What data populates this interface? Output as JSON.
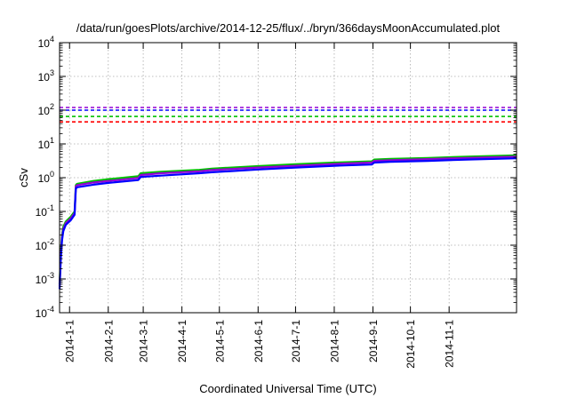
{
  "chart_data": {
    "type": "line",
    "title": "/data/run/goesPlots/archive/2014-12-25/flux/../bryn/366daysMoonAccumulated.plot",
    "xlabel": "Coordinated Universal Time (UTC)",
    "ylabel": "cSv",
    "yscale": "log",
    "ylim": [
      0.0001,
      10000
    ],
    "xlim": [
      "2013-12-24",
      "2014-12-25"
    ],
    "grid": true,
    "x_ticks": [
      "2014-1-1",
      "2014-2-1",
      "2014-3-1",
      "2014-4-1",
      "2014-5-1",
      "2014-6-1",
      "2014-7-1",
      "2014-8-1",
      "2014-9-1",
      "2014-10-1",
      "2014-11-1"
    ],
    "y_ticks": [
      {
        "value": 0.0001,
        "base": "10",
        "exp": "-4"
      },
      {
        "value": 0.001,
        "base": "10",
        "exp": "-3"
      },
      {
        "value": 0.01,
        "base": "10",
        "exp": "-2"
      },
      {
        "value": 0.1,
        "base": "10",
        "exp": "-1"
      },
      {
        "value": 1,
        "base": "10",
        "exp": "0"
      },
      {
        "value": 10,
        "base": "10",
        "exp": "1"
      },
      {
        "value": 100,
        "base": "10",
        "exp": "2"
      },
      {
        "value": 1000,
        "base": "10",
        "exp": "3"
      },
      {
        "value": 10000,
        "base": "10",
        "exp": "4"
      }
    ],
    "thresholds": [
      {
        "value": 120,
        "color": "#9400d3",
        "style": "dashed"
      },
      {
        "value": 100,
        "color": "#0000ff",
        "style": "dashed"
      },
      {
        "value": 65,
        "color": "#00c000",
        "style": "dashed"
      },
      {
        "value": 45,
        "color": "#ff0000",
        "style": "dashed"
      }
    ],
    "series": [
      {
        "color": "#00c000",
        "points": [
          [
            "2013-12-24",
            0.0007
          ],
          [
            "2013-12-25",
            0.006
          ],
          [
            "2013-12-26",
            0.02
          ],
          [
            "2013-12-27",
            0.035
          ],
          [
            "2013-12-29",
            0.05
          ],
          [
            "2014-1-2",
            0.07
          ],
          [
            "2014-1-5",
            0.1
          ],
          [
            "2014-1-6",
            0.6
          ],
          [
            "2014-1-7",
            0.66
          ],
          [
            "2014-1-20",
            0.8
          ],
          [
            "2014-2-1",
            0.9
          ],
          [
            "2014-2-25",
            1.1
          ],
          [
            "2014-2-27",
            1.35
          ],
          [
            "2014-3-15",
            1.5
          ],
          [
            "2014-4-15",
            1.7
          ],
          [
            "2014-4-25",
            1.85
          ],
          [
            "2014-6-1",
            2.2
          ],
          [
            "2014-7-1",
            2.5
          ],
          [
            "2014-8-1",
            2.8
          ],
          [
            "2014-8-31",
            3.05
          ],
          [
            "2014-9-2",
            3.45
          ],
          [
            "2014-9-15",
            3.6
          ],
          [
            "2014-10-15",
            3.85
          ],
          [
            "2014-11-15",
            4.2
          ],
          [
            "2014-12-25",
            4.6
          ]
        ]
      },
      {
        "color": "#9400d3",
        "points": [
          [
            "2013-12-24",
            0.0006
          ],
          [
            "2013-12-25",
            0.005
          ],
          [
            "2013-12-26",
            0.017
          ],
          [
            "2013-12-27",
            0.03
          ],
          [
            "2013-12-29",
            0.045
          ],
          [
            "2014-1-2",
            0.062
          ],
          [
            "2014-1-5",
            0.09
          ],
          [
            "2014-1-6",
            0.55
          ],
          [
            "2014-1-7",
            0.6
          ],
          [
            "2014-1-20",
            0.72
          ],
          [
            "2014-2-1",
            0.8
          ],
          [
            "2014-2-25",
            0.98
          ],
          [
            "2014-2-27",
            1.2
          ],
          [
            "2014-3-15",
            1.35
          ],
          [
            "2014-4-15",
            1.55
          ],
          [
            "2014-4-25",
            1.68
          ],
          [
            "2014-6-1",
            2.0
          ],
          [
            "2014-7-1",
            2.25
          ],
          [
            "2014-8-1",
            2.55
          ],
          [
            "2014-8-31",
            2.8
          ],
          [
            "2014-9-2",
            3.15
          ],
          [
            "2014-9-15",
            3.3
          ],
          [
            "2014-10-15",
            3.55
          ],
          [
            "2014-11-15",
            3.85
          ],
          [
            "2014-12-25",
            4.2
          ]
        ]
      },
      {
        "color": "#0000ff",
        "points": [
          [
            "2013-12-24",
            0.0005
          ],
          [
            "2013-12-25",
            0.004
          ],
          [
            "2013-12-26",
            0.014
          ],
          [
            "2013-12-27",
            0.026
          ],
          [
            "2013-12-29",
            0.04
          ],
          [
            "2014-1-2",
            0.055
          ],
          [
            "2014-1-5",
            0.08
          ],
          [
            "2014-1-6",
            0.47
          ],
          [
            "2014-1-7",
            0.52
          ],
          [
            "2014-1-20",
            0.62
          ],
          [
            "2014-2-1",
            0.7
          ],
          [
            "2014-2-25",
            0.85
          ],
          [
            "2014-2-27",
            1.05
          ],
          [
            "2014-3-15",
            1.15
          ],
          [
            "2014-4-15",
            1.35
          ],
          [
            "2014-4-25",
            1.45
          ],
          [
            "2014-6-1",
            1.75
          ],
          [
            "2014-7-1",
            2.0
          ],
          [
            "2014-8-1",
            2.25
          ],
          [
            "2014-8-31",
            2.45
          ],
          [
            "2014-9-2",
            2.8
          ],
          [
            "2014-9-15",
            2.95
          ],
          [
            "2014-10-15",
            3.15
          ],
          [
            "2014-11-15",
            3.45
          ],
          [
            "2014-12-25",
            3.75
          ]
        ]
      }
    ]
  }
}
